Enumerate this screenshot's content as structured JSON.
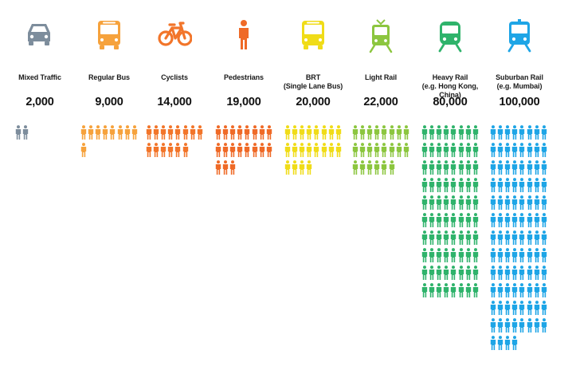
{
  "chart_data": {
    "type": "pictogram",
    "title": "",
    "icon_unit": "people",
    "categories": [
      {
        "label": "Mixed Traffic",
        "value_label": "2,000",
        "value": 2000,
        "icon": "car-icon",
        "color": "#7d8d9c"
      },
      {
        "label": "Regular Bus",
        "value_label": "9,000",
        "value": 9000,
        "icon": "bus-icon",
        "color": "#f6a23c"
      },
      {
        "label": "Cyclists",
        "value_label": "14,000",
        "value": 14000,
        "icon": "bicycle-icon",
        "color": "#f2752a"
      },
      {
        "label": "Pedestrians",
        "value_label": "19,000",
        "value": 19000,
        "icon": "pedestrian-icon",
        "color": "#ef6a27"
      },
      {
        "label": "BRT\n(Single Lane Bus)",
        "value_label": "20,000",
        "value": 20000,
        "icon": "brt-bus-icon",
        "color": "#f0dc18"
      },
      {
        "label": "Light Rail",
        "value_label": "22,000",
        "value": 22000,
        "icon": "light-rail-icon",
        "color": "#8cc63f"
      },
      {
        "label": "Heavy Rail\n(e.g. Hong Kong, China)",
        "value_label": "80,000",
        "value": 80000,
        "icon": "heavy-rail-icon",
        "color": "#2fb36b"
      },
      {
        "label": "Suburban Rail\n(e.g. Mumbai)",
        "value_label": "100,000",
        "value": 100000,
        "icon": "suburban-rail-icon",
        "color": "#1ea5e6"
      }
    ]
  }
}
